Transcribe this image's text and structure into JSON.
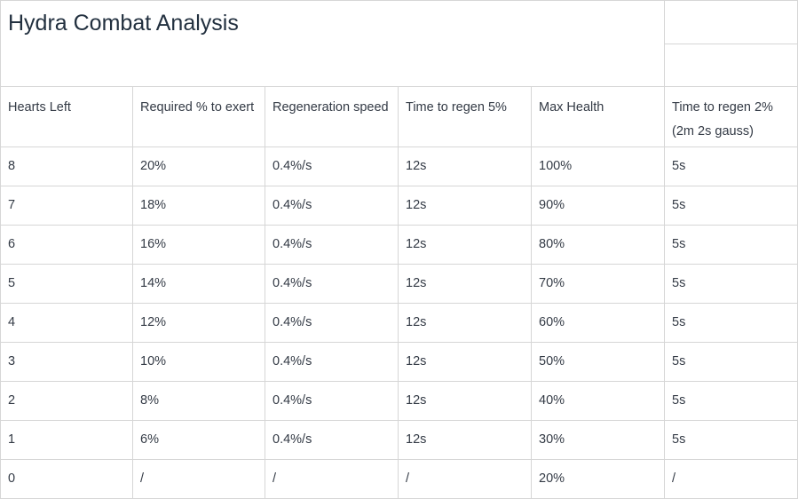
{
  "title": "Hydra Combat Analysis",
  "headers": [
    "Hearts Left",
    "Required % to exert",
    "Regeneration speed",
    "Time to regen 5%",
    "Max Health",
    "Time to regen 2% (2m 2s gauss)"
  ],
  "rows": [
    [
      "8",
      "20%",
      "0.4%/s",
      "12s",
      "100%",
      "5s"
    ],
    [
      "7",
      "18%",
      "0.4%/s",
      "12s",
      "90%",
      "5s"
    ],
    [
      "6",
      "16%",
      "0.4%/s",
      "12s",
      "80%",
      "5s"
    ],
    [
      "5",
      "14%",
      "0.4%/s",
      "12s",
      "70%",
      "5s"
    ],
    [
      "4",
      "12%",
      "0.4%/s",
      "12s",
      "60%",
      "5s"
    ],
    [
      "3",
      "10%",
      "0.4%/s",
      "12s",
      "50%",
      "5s"
    ],
    [
      "2",
      "8%",
      "0.4%/s",
      "12s",
      "40%",
      "5s"
    ],
    [
      "1",
      "6%",
      "0.4%/s",
      "12s",
      "30%",
      "5s"
    ],
    [
      "0",
      "/",
      "/",
      "/",
      "20%",
      "/"
    ]
  ]
}
